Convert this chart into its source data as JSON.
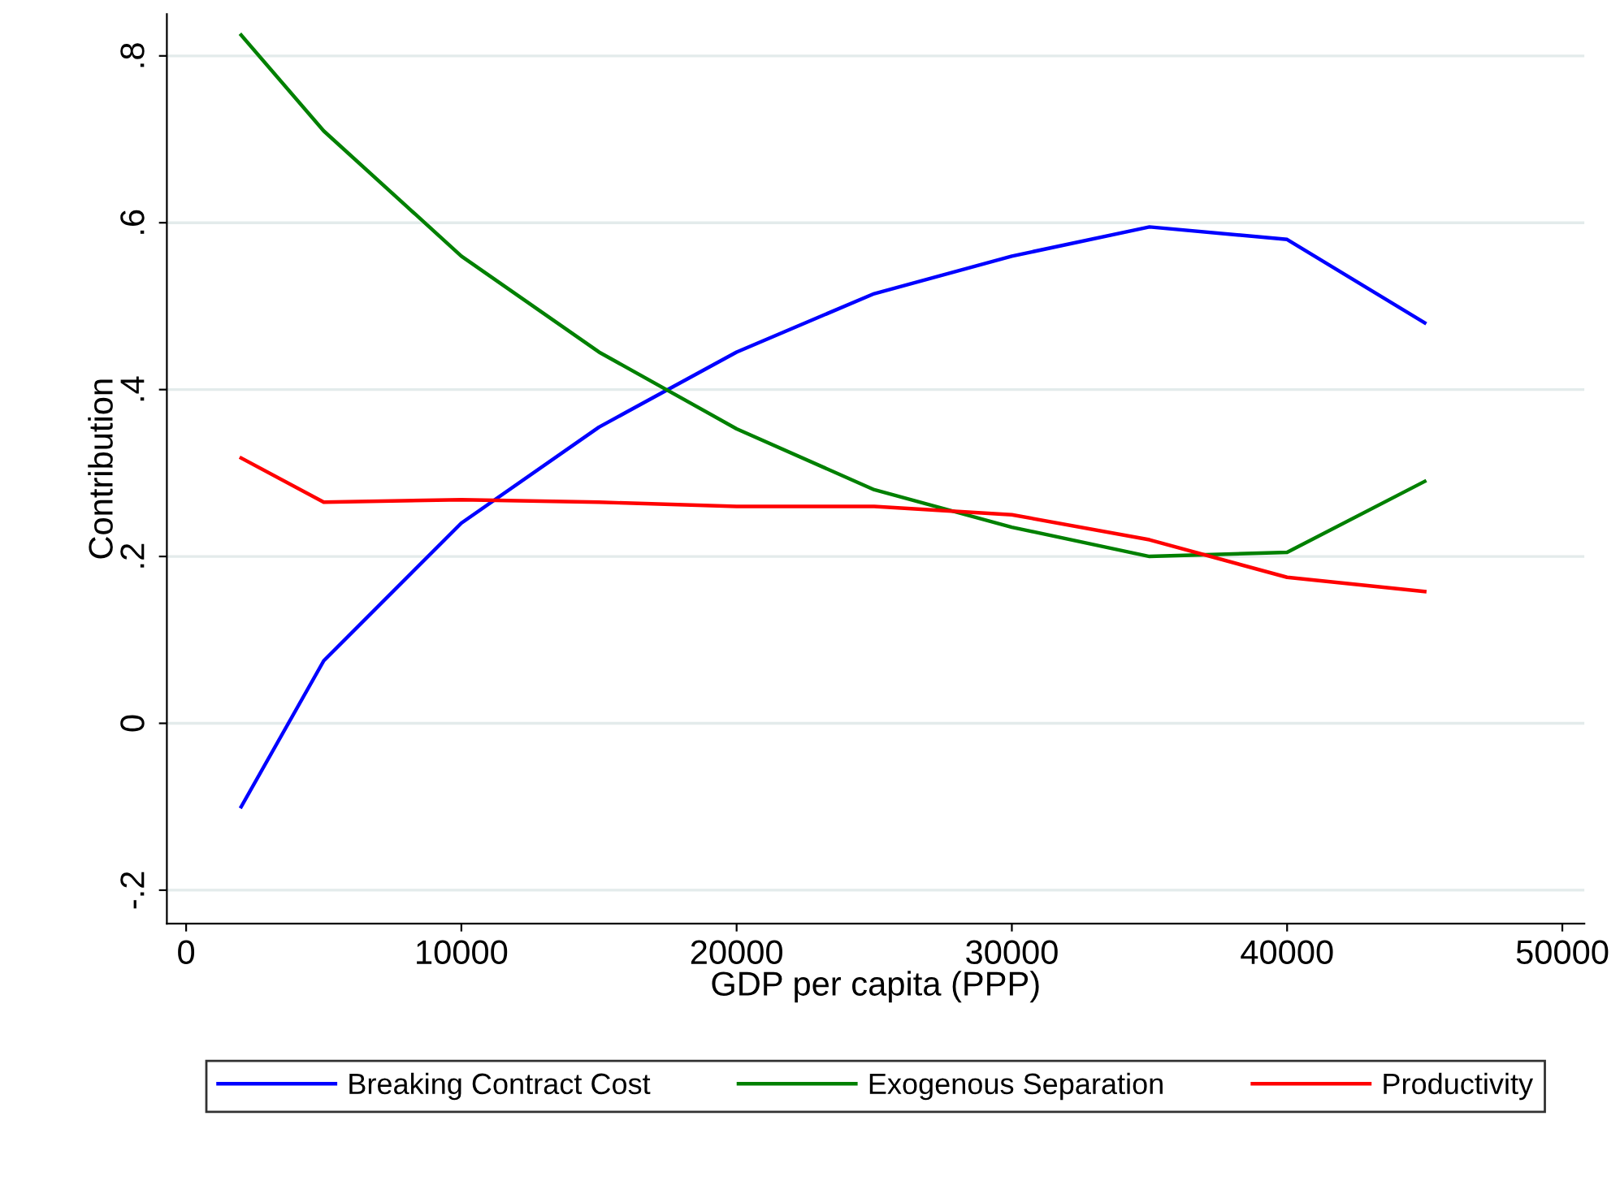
{
  "chart_data": {
    "type": "line",
    "xlabel": "GDP per capita (PPP)",
    "ylabel": "Contribution",
    "x": [
      2000,
      5000,
      10000,
      15000,
      20000,
      25000,
      30000,
      35000,
      40000,
      45000
    ],
    "series": [
      {
        "name": "Breaking Contract Cost",
        "color": "#0000ff",
        "values": [
          -0.1,
          0.075,
          0.24,
          0.355,
          0.445,
          0.515,
          0.56,
          0.595,
          0.58,
          0.48
        ]
      },
      {
        "name": "Exogenous Separation",
        "color": "#008000",
        "values": [
          0.825,
          0.71,
          0.56,
          0.445,
          0.353,
          0.28,
          0.235,
          0.2,
          0.205,
          0.29
        ]
      },
      {
        "name": "Productivity",
        "color": "#ff0000",
        "values": [
          0.318,
          0.265,
          0.268,
          0.265,
          0.26,
          0.26,
          0.25,
          0.22,
          0.175,
          0.158
        ]
      }
    ],
    "xlim": [
      -700,
      50800
    ],
    "ylim": [
      -0.24,
      0.85
    ],
    "xticks": [
      0,
      10000,
      20000,
      30000,
      40000,
      50000
    ],
    "yticks": [
      {
        "value": -0.2,
        "label": "-.2"
      },
      {
        "value": 0,
        "label": "0"
      },
      {
        "value": 0.2,
        "label": ".2"
      },
      {
        "value": 0.4,
        "label": ".4"
      },
      {
        "value": 0.6,
        "label": ".6"
      },
      {
        "value": 0.8,
        "label": ".8"
      }
    ],
    "grid": "y",
    "legend": "bottom",
    "marker": "none",
    "line_style": "solid"
  }
}
